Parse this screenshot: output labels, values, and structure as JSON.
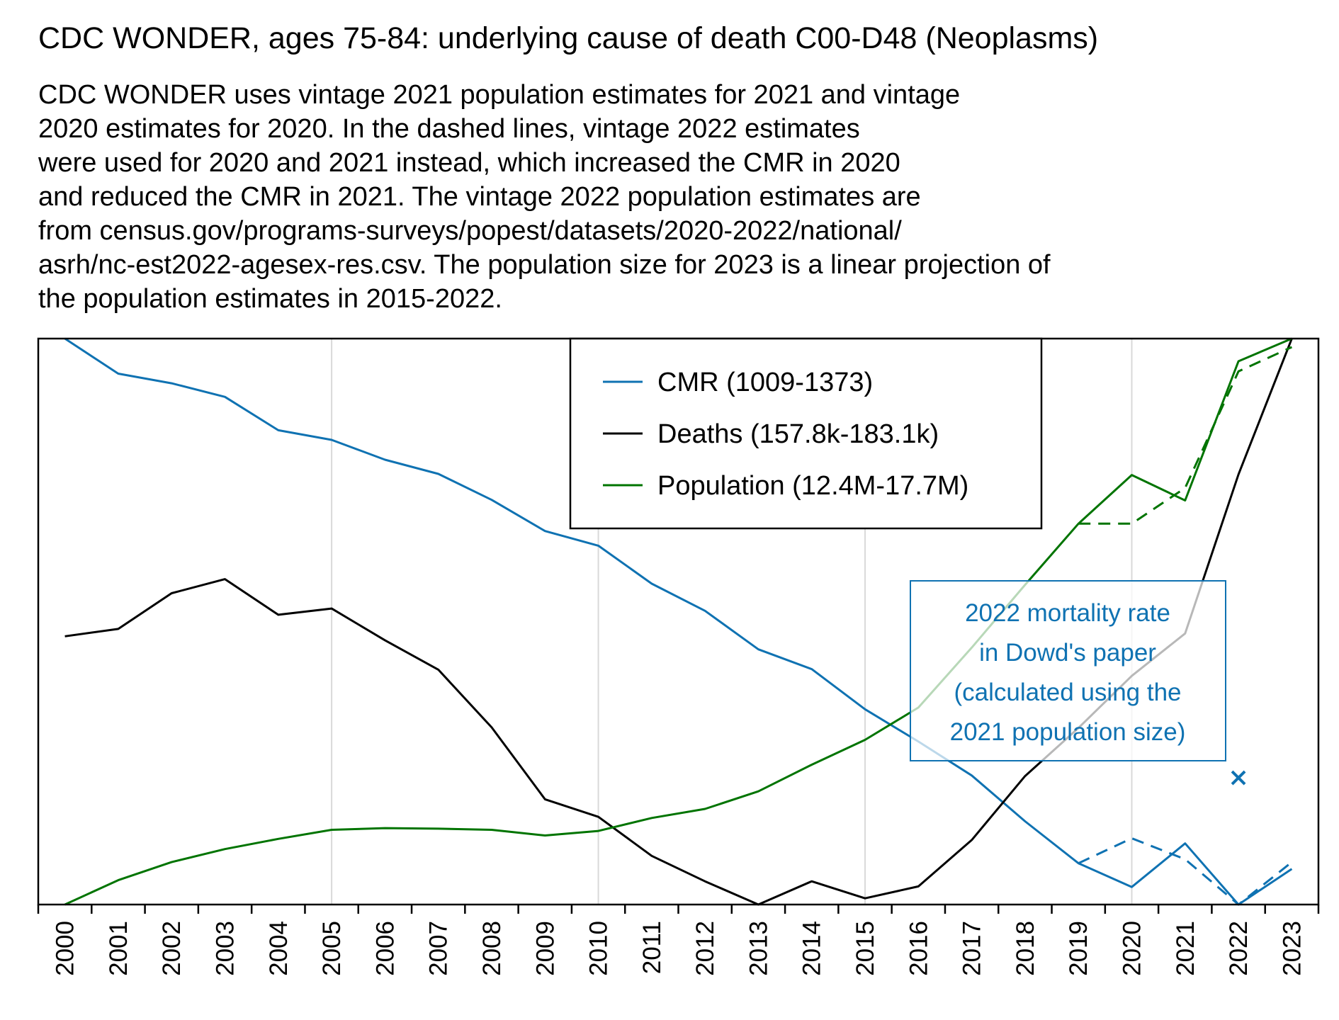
{
  "title": "CDC WONDER, ages 75-84: underlying cause of death C00-D48 (Neoplasms)",
  "subtitle": [
    "CDC WONDER uses vintage 2021 population estimates for 2021 and vintage",
    "2020 estimates for 2020. In the dashed lines, vintage 2022 estimates",
    "were used for 2020 and 2021 instead, which increased the CMR in 2020",
    "and reduced the CMR in 2021. The vintage 2022 population estimates are",
    "from census.gov/programs-surveys/popest/datasets/2020-2022/national/",
    "asrh/nc-est2022-agesex-res.csv. The population size for 2023 is a linear projection of",
    "the population estimates in 2015-2022."
  ],
  "colors": {
    "cmr": "#0f72b2",
    "deaths": "#000000",
    "population": "#007400",
    "grid": "#d9d9d9"
  },
  "chart_data": {
    "type": "line",
    "x": [
      2000,
      2001,
      2002,
      2003,
      2004,
      2005,
      2006,
      2007,
      2008,
      2009,
      2010,
      2011,
      2012,
      2013,
      2014,
      2015,
      2016,
      2017,
      2018,
      2019,
      2020,
      2021,
      2022,
      2023
    ],
    "xlim": [
      1999.5,
      2023.5
    ],
    "ylim": [
      0,
      1
    ],
    "y_axis_labels": "none",
    "normalized": true,
    "grid": "vertical every 5 years",
    "legend": "top-center",
    "series": [
      {
        "name": "CMR (1009-1373)",
        "color": "#0f72b2",
        "style": "solid",
        "values": [
          1.0,
          0.938,
          0.921,
          0.897,
          0.838,
          0.821,
          0.786,
          0.761,
          0.715,
          0.66,
          0.634,
          0.567,
          0.519,
          0.451,
          0.416,
          0.345,
          0.288,
          0.228,
          0.147,
          0.073,
          0.031,
          0.108,
          0.0,
          0.063
        ]
      },
      {
        "name": "Deaths (157.8k-183.1k)",
        "color": "#000000",
        "style": "solid",
        "values": [
          0.474,
          0.487,
          0.55,
          0.575,
          0.512,
          0.523,
          0.467,
          0.415,
          0.313,
          0.186,
          0.155,
          0.086,
          0.041,
          0.0,
          0.041,
          0.011,
          0.032,
          0.114,
          0.227,
          0.312,
          0.404,
          0.479,
          0.76,
          1.0
        ]
      },
      {
        "name": "Population (12.4M-17.7M)",
        "color": "#007400",
        "style": "solid",
        "values": [
          0.0,
          0.043,
          0.075,
          0.098,
          0.116,
          0.132,
          0.135,
          0.134,
          0.132,
          0.122,
          0.13,
          0.153,
          0.169,
          0.2,
          0.247,
          0.291,
          0.348,
          0.454,
          0.565,
          0.673,
          0.759,
          0.714,
          0.96,
          1.0
        ]
      },
      {
        "name": "",
        "color": "#0f72b2",
        "style": "dashed",
        "x": [
          2019,
          2020,
          2021,
          2022,
          2023
        ],
        "values": [
          0.073,
          0.117,
          0.08,
          0.0,
          0.075
        ]
      },
      {
        "name": "",
        "color": "#007400",
        "style": "dashed",
        "x": [
          2019,
          2020,
          2021,
          2022,
          2023
        ],
        "values": [
          0.673,
          0.673,
          0.736,
          0.942,
          0.985
        ]
      }
    ],
    "markers": [
      {
        "x": 2022,
        "y": 0.224,
        "symbol": "x",
        "color": "#0f72b2"
      }
    ],
    "annotation": {
      "lines": [
        "2022 mortality rate",
        "in Dowd's paper",
        "(calculated using the",
        "2021 population size)"
      ],
      "color": "#0f72b2"
    }
  }
}
